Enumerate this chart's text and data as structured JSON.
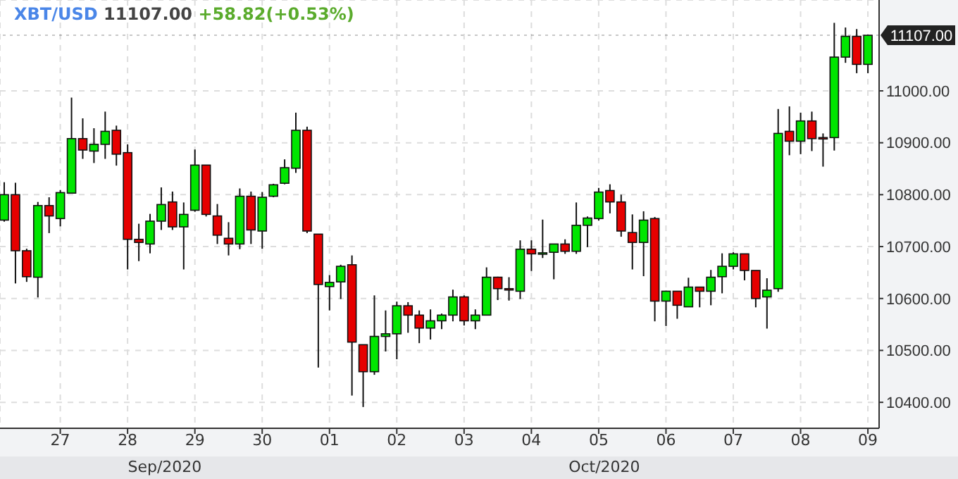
{
  "chart_data": {
    "type": "candlestick",
    "title": "XBT/USD",
    "annotations": [
      "11107.00",
      "+58.82(+0.53%)",
      "Sep/2020",
      "Oct/2020"
    ],
    "x": [
      "2020-09-26T04:00",
      "2020-09-26T08:00",
      "2020-09-26T12:00",
      "2020-09-26T16:00",
      "2020-09-26T20:00",
      "2020-09-27T00:00",
      "2020-09-27T04:00",
      "2020-09-27T08:00",
      "2020-09-27T12:00",
      "2020-09-27T16:00",
      "2020-09-27T20:00",
      "2020-09-28T00:00",
      "2020-09-28T04:00",
      "2020-09-28T08:00",
      "2020-09-28T12:00",
      "2020-09-28T16:00",
      "2020-09-28T20:00",
      "2020-09-29T00:00",
      "2020-09-29T04:00",
      "2020-09-29T08:00",
      "2020-09-29T12:00",
      "2020-09-29T16:00",
      "2020-09-29T20:00",
      "2020-09-30T00:00",
      "2020-09-30T04:00",
      "2020-09-30T08:00",
      "2020-09-30T12:00",
      "2020-09-30T16:00",
      "2020-09-30T20:00",
      "2020-10-01T00:00",
      "2020-10-01T04:00",
      "2020-10-01T08:00",
      "2020-10-01T12:00",
      "2020-10-01T16:00",
      "2020-10-01T20:00",
      "2020-10-02T00:00",
      "2020-10-02T04:00",
      "2020-10-02T08:00",
      "2020-10-02T12:00",
      "2020-10-02T16:00",
      "2020-10-02T20:00",
      "2020-10-03T00:00",
      "2020-10-03T04:00",
      "2020-10-03T08:00",
      "2020-10-03T12:00",
      "2020-10-03T16:00",
      "2020-10-03T20:00",
      "2020-10-04T00:00",
      "2020-10-04T04:00",
      "2020-10-04T08:00",
      "2020-10-04T12:00",
      "2020-10-04T16:00",
      "2020-10-04T20:00",
      "2020-10-05T00:00",
      "2020-10-05T04:00",
      "2020-10-05T08:00",
      "2020-10-05T12:00",
      "2020-10-05T16:00",
      "2020-10-05T20:00",
      "2020-10-06T00:00",
      "2020-10-06T04:00",
      "2020-10-06T08:00",
      "2020-10-06T12:00",
      "2020-10-06T16:00",
      "2020-10-06T20:00",
      "2020-10-07T00:00",
      "2020-10-07T04:00",
      "2020-10-07T08:00",
      "2020-10-07T12:00",
      "2020-10-07T16:00",
      "2020-10-07T20:00",
      "2020-10-08T00:00",
      "2020-10-08T04:00",
      "2020-10-08T08:00",
      "2020-10-08T12:00",
      "2020-10-08T16:00",
      "2020-10-08T20:00",
      "2020-10-09T00:00"
    ],
    "ohlc": [
      [
        10751,
        10824,
        10748,
        10800
      ],
      [
        10800,
        10823,
        10629,
        10692
      ],
      [
        10692,
        10696,
        10632,
        10642
      ],
      [
        10641,
        10786,
        10602,
        10779
      ],
      [
        10779,
        10795,
        10726,
        10759
      ],
      [
        10754,
        10809,
        10739,
        10804
      ],
      [
        10803,
        10987,
        10803,
        10908
      ],
      [
        10908,
        10947,
        10869,
        10886
      ],
      [
        10884,
        10928,
        10861,
        10897
      ],
      [
        10897,
        10960,
        10869,
        10922
      ],
      [
        10924,
        10933,
        10856,
        10878
      ],
      [
        10881,
        10897,
        10656,
        10714
      ],
      [
        10714,
        10744,
        10672,
        10708
      ],
      [
        10705,
        10763,
        10687,
        10749
      ],
      [
        10749,
        10814,
        10732,
        10781
      ],
      [
        10786,
        10806,
        10732,
        10738
      ],
      [
        10738,
        10785,
        10656,
        10762
      ],
      [
        10770,
        10887,
        10767,
        10857
      ],
      [
        10857,
        10857,
        10758,
        10762
      ],
      [
        10759,
        10782,
        10705,
        10722
      ],
      [
        10716,
        10747,
        10683,
        10705
      ],
      [
        10705,
        10812,
        10695,
        10797
      ],
      [
        10797,
        10806,
        10705,
        10732
      ],
      [
        10730,
        10805,
        10696,
        10795
      ],
      [
        10797,
        10821,
        10795,
        10819
      ],
      [
        10822,
        10868,
        10820,
        10852
      ],
      [
        10851,
        10958,
        10842,
        10924
      ],
      [
        10924,
        10931,
        10726,
        10730
      ],
      [
        10724,
        10724,
        10467,
        10627
      ],
      [
        10623,
        10645,
        10577,
        10631
      ],
      [
        10632,
        10665,
        10599,
        10662
      ],
      [
        10665,
        10683,
        10413,
        10516
      ],
      [
        10511,
        10511,
        10391,
        10459
      ],
      [
        10459,
        10606,
        10453,
        10527
      ],
      [
        10527,
        10577,
        10498,
        10532
      ],
      [
        10532,
        10594,
        10483,
        10586
      ],
      [
        10586,
        10593,
        10534,
        10568
      ],
      [
        10568,
        10577,
        10514,
        10543
      ],
      [
        10543,
        10579,
        10521,
        10557
      ],
      [
        10557,
        10571,
        10541,
        10568
      ],
      [
        10568,
        10617,
        10556,
        10603
      ],
      [
        10603,
        10606,
        10548,
        10557
      ],
      [
        10557,
        10579,
        10541,
        10568
      ],
      [
        10568,
        10660,
        10568,
        10641
      ],
      [
        10641,
        10642,
        10597,
        10619
      ],
      [
        10619,
        10641,
        10596,
        10617
      ],
      [
        10614,
        10712,
        10599,
        10695
      ],
      [
        10695,
        10712,
        10653,
        10686
      ],
      [
        10686,
        10752,
        10678,
        10688
      ],
      [
        10689,
        10705,
        10637,
        10705
      ],
      [
        10705,
        10714,
        10686,
        10691
      ],
      [
        10691,
        10785,
        10686,
        10741
      ],
      [
        10741,
        10758,
        10699,
        10755
      ],
      [
        10754,
        10813,
        10750,
        10805
      ],
      [
        10808,
        10820,
        10764,
        10786
      ],
      [
        10786,
        10800,
        10719,
        10730
      ],
      [
        10727,
        10762,
        10656,
        10708
      ],
      [
        10708,
        10768,
        10643,
        10751
      ],
      [
        10754,
        10757,
        10556,
        10595
      ],
      [
        10595,
        10615,
        10547,
        10614
      ],
      [
        10614,
        10614,
        10561,
        10587
      ],
      [
        10584,
        10640,
        10584,
        10622
      ],
      [
        10622,
        10622,
        10583,
        10614
      ],
      [
        10614,
        10655,
        10587,
        10641
      ],
      [
        10642,
        10687,
        10610,
        10662
      ],
      [
        10662,
        10689,
        10656,
        10686
      ],
      [
        10686,
        10686,
        10635,
        10654
      ],
      [
        10654,
        10654,
        10583,
        10600
      ],
      [
        10603,
        10639,
        10542,
        10616
      ],
      [
        10619,
        10965,
        10613,
        10918
      ],
      [
        10922,
        10970,
        10876,
        10903
      ],
      [
        10903,
        10958,
        10878,
        10942
      ],
      [
        10942,
        10960,
        10884,
        10908
      ],
      [
        10910,
        10918,
        10854,
        10909
      ],
      [
        10910,
        11131,
        10885,
        11065
      ],
      [
        11065,
        11122,
        11054,
        11105
      ],
      [
        11105,
        11119,
        11034,
        11051
      ],
      [
        11051,
        11108,
        11034,
        11107
      ]
    ],
    "colors": [
      "#00e600",
      "#e60000",
      "#e60000",
      "#00e600",
      "#e60000",
      "#00e600",
      "#00e600",
      "#e60000",
      "#00e600",
      "#00e600",
      "#e60000",
      "#e60000",
      "#e60000",
      "#00e600",
      "#00e600",
      "#e60000",
      "#00e600",
      "#00e600",
      "#e60000",
      "#e60000",
      "#e60000",
      "#00e600",
      "#e60000",
      "#00e600",
      "#00e600",
      "#00e600",
      "#00e600",
      "#e60000",
      "#e60000",
      "#00e600",
      "#00e600",
      "#e60000",
      "#e60000",
      "#00e600",
      "#00e600",
      "#00e600",
      "#e60000",
      "#e60000",
      "#00e600",
      "#00e600",
      "#00e600",
      "#e60000",
      "#00e600",
      "#00e600",
      "#e60000",
      "#e60000",
      "#00e600",
      "#e60000",
      "#00e600",
      "#00e600",
      "#e60000",
      "#00e600",
      "#00e600",
      "#00e600",
      "#e60000",
      "#e60000",
      "#e60000",
      "#00e600",
      "#e60000",
      "#00e600",
      "#e60000",
      "#00e600",
      "#e60000",
      "#00e600",
      "#00e600",
      "#00e600",
      "#e60000",
      "#e60000",
      "#00e600",
      "#00e600",
      "#e60000",
      "#00e600",
      "#e60000",
      "#e60000",
      "#00e600",
      "#00e600",
      "#e60000",
      "#00e600"
    ],
    "xlim": [
      "2020-09-26T02:30",
      "2020-10-09T04:00"
    ],
    "xticks": [
      {
        "value": "2020-09-27",
        "label": "27"
      },
      {
        "value": "2020-09-28",
        "label": "28"
      },
      {
        "value": "2020-09-29",
        "label": "29"
      },
      {
        "value": "2020-09-30",
        "label": "30"
      },
      {
        "value": "2020-10-01",
        "label": "01"
      },
      {
        "value": "2020-10-02",
        "label": "02"
      },
      {
        "value": "2020-10-03",
        "label": "03"
      },
      {
        "value": "2020-10-04",
        "label": "04"
      },
      {
        "value": "2020-10-05",
        "label": "05"
      },
      {
        "value": "2020-10-06",
        "label": "06"
      },
      {
        "value": "2020-10-07",
        "label": "07"
      },
      {
        "value": "2020-10-08",
        "label": "08"
      },
      {
        "value": "2020-10-09",
        "label": "09"
      }
    ],
    "ylim": [
      10350,
      11175
    ],
    "yticks": [
      {
        "value": 10400,
        "label": "10400.00"
      },
      {
        "value": 10500,
        "label": "10500.00"
      },
      {
        "value": 10600,
        "label": "10600.00"
      },
      {
        "value": 10700,
        "label": "10700.00"
      },
      {
        "value": 10800,
        "label": "10800.00"
      },
      {
        "value": 10900,
        "label": "10900.00"
      },
      {
        "value": 11000,
        "label": "11000.00"
      }
    ],
    "ref_lines": [
      {
        "axis": "y",
        "value": 11107,
        "label": "11107.00",
        "color": "#222222"
      }
    ],
    "grid": true
  }
}
